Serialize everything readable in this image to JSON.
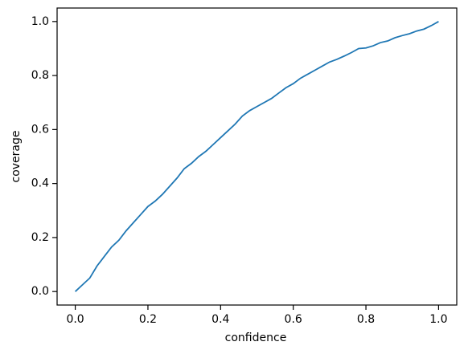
{
  "chart_data": {
    "type": "line",
    "x_label": "confidence",
    "y_label": "coverage",
    "xlim": [
      -0.05,
      1.05
    ],
    "ylim": [
      -0.05,
      1.05
    ],
    "xticks": [
      {
        "value": 0,
        "label": "0.0"
      },
      0.2,
      0.4,
      0.6,
      0.8,
      {
        "value": 1,
        "label": "1.0"
      }
    ],
    "yticks": [
      {
        "value": 0,
        "label": "0.0"
      },
      0.2,
      0.4,
      0.6,
      0.8,
      {
        "value": 1,
        "label": "1.0"
      }
    ],
    "x": [
      0,
      0.02,
      0.04,
      0.06,
      0.08,
      0.1,
      0.12,
      0.14,
      0.16,
      0.18,
      0.2,
      0.22,
      0.24,
      0.26,
      0.28,
      0.3,
      0.32,
      0.34,
      0.36,
      0.38,
      0.4,
      0.42,
      0.44,
      0.46,
      0.48,
      0.5,
      0.52,
      0.54,
      0.56,
      0.58,
      0.6,
      0.62,
      0.64,
      0.66,
      0.68,
      0.7,
      0.72,
      0.74,
      0.76,
      0.78,
      0.8,
      0.82,
      0.84,
      0.86,
      0.88,
      0.9,
      0.92,
      0.94,
      0.96,
      0.98,
      1
    ],
    "series": [
      {
        "color": "#1f77b4",
        "values": [
          0,
          0.025,
          0.05,
          0.095,
          0.13,
          0.165,
          0.19,
          0.225,
          0.255,
          0.285,
          0.315,
          0.335,
          0.36,
          0.39,
          0.42,
          0.455,
          0.475,
          0.5,
          0.52,
          0.545,
          0.57,
          0.595,
          0.62,
          0.65,
          0.67,
          0.685,
          0.7,
          0.715,
          0.735,
          0.755,
          0.77,
          0.79,
          0.805,
          0.82,
          0.835,
          0.85,
          0.86,
          0.872,
          0.885,
          0.9,
          0.902,
          0.91,
          0.922,
          0.928,
          0.94,
          0.948,
          0.955,
          0.965,
          0.972,
          0.985,
          1
        ]
      }
    ]
  }
}
